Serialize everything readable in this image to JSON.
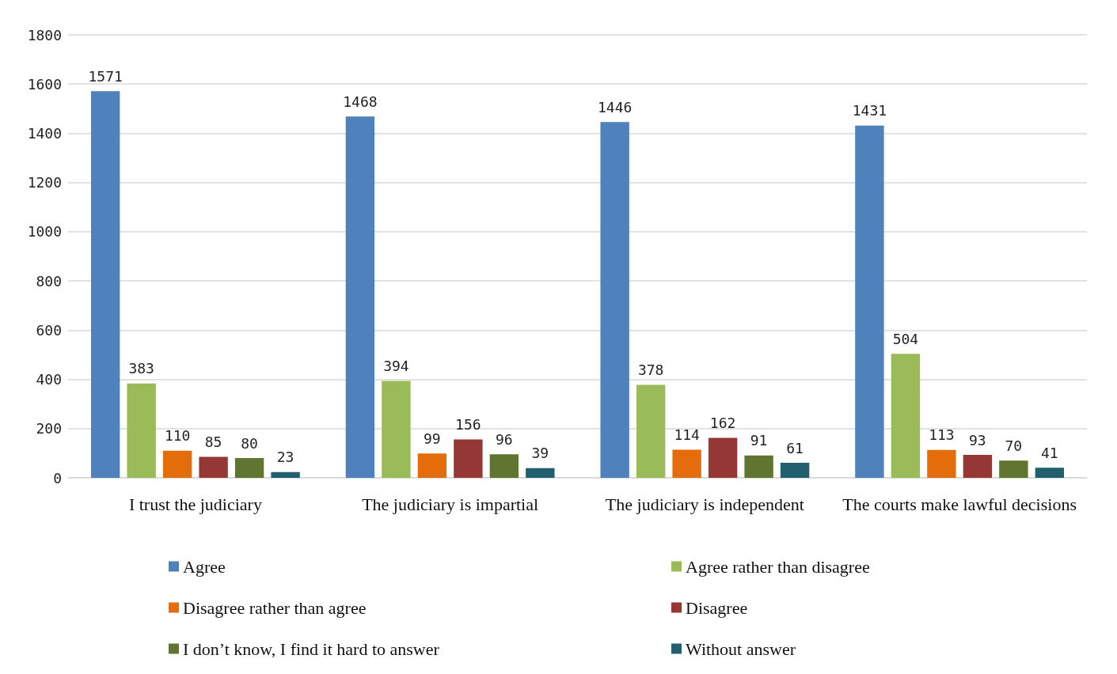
{
  "chart_data": {
    "type": "bar",
    "categories": [
      "I trust the judiciary",
      "The judiciary is impartial",
      "The judiciary is independent",
      "The courts make lawful decisions"
    ],
    "series": [
      {
        "name": "Agree",
        "color": "#4f81bd",
        "values": [
          1571,
          1468,
          1446,
          1431
        ]
      },
      {
        "name": "Agree rather than disagree",
        "color": "#9bbb59",
        "values": [
          383,
          394,
          378,
          504
        ]
      },
      {
        "name": "Disagree rather than agree",
        "color": "#e46c0a",
        "values": [
          110,
          99,
          114,
          113
        ]
      },
      {
        "name": "Disagree",
        "color": "#953735",
        "values": [
          85,
          156,
          162,
          93
        ]
      },
      {
        "name": "I don’t know, I find it hard to answer",
        "color": "#5f7530",
        "values": [
          80,
          96,
          91,
          70
        ]
      },
      {
        "name": "Without answer",
        "color": "#215f6e",
        "values": [
          23,
          39,
          61,
          41
        ]
      }
    ],
    "ylim": [
      0,
      1800
    ],
    "yticks": [
      0,
      200,
      400,
      600,
      800,
      1000,
      1200,
      1400,
      1600,
      1800
    ],
    "grid": "y",
    "data_labels": true,
    "legend": "bottom"
  }
}
